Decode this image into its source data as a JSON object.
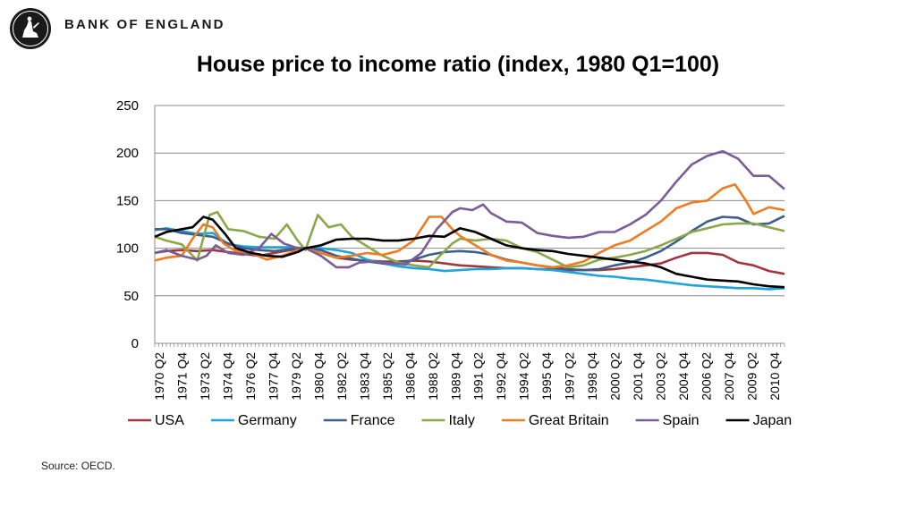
{
  "header": {
    "bank_name": "BANK OF ENGLAND"
  },
  "footer": {
    "source": "Source: OECD."
  },
  "chart_data": {
    "type": "line",
    "title": "House price to income ratio (index, 1980 Q1=100)",
    "xlabel": "",
    "ylabel": "",
    "ylim": [
      0,
      250
    ],
    "yticks": [
      0,
      50,
      100,
      150,
      200,
      250
    ],
    "xlim": [
      1970.25,
      2011.0
    ],
    "xtick_labels": [
      "1970 Q2",
      "1971 Q4",
      "1973 Q2",
      "1974 Q4",
      "1976 Q2",
      "1977 Q4",
      "1979 Q2",
      "1980 Q4",
      "1982 Q2",
      "1983 Q4",
      "1985 Q2",
      "1986 Q4",
      "1988 Q2",
      "1989 Q4",
      "1991 Q2",
      "1992 Q4",
      "1994 Q2",
      "1995 Q4",
      "1997 Q2",
      "1998 Q4",
      "2000 Q2",
      "2001 Q4",
      "2003 Q2",
      "2004 Q4",
      "2006 Q2",
      "2007 Q4",
      "2009 Q2",
      "2010 Q4"
    ],
    "grid": "horizontal",
    "legend_position": "bottom",
    "series": [
      {
        "name": "USA",
        "color": "#a0373c",
        "points": [
          [
            1970.25,
            95
          ],
          [
            1971,
            97
          ],
          [
            1972,
            98
          ],
          [
            1973,
            97
          ],
          [
            1974,
            98
          ],
          [
            1975,
            96
          ],
          [
            1976,
            94
          ],
          [
            1977,
            92
          ],
          [
            1978,
            95
          ],
          [
            1979,
            98
          ],
          [
            1980,
            100
          ],
          [
            1981,
            95
          ],
          [
            1982,
            90
          ],
          [
            1983,
            88
          ],
          [
            1984,
            87
          ],
          [
            1985,
            86
          ],
          [
            1986,
            86
          ],
          [
            1987,
            87
          ],
          [
            1988,
            86
          ],
          [
            1989,
            84
          ],
          [
            1990,
            82
          ],
          [
            1991,
            81
          ],
          [
            1992,
            80
          ],
          [
            1993,
            79
          ],
          [
            1994,
            79
          ],
          [
            1995,
            78
          ],
          [
            1996,
            78
          ],
          [
            1997,
            77
          ],
          [
            1998,
            77
          ],
          [
            1999,
            77
          ],
          [
            2000,
            78
          ],
          [
            2001,
            80
          ],
          [
            2002,
            82
          ],
          [
            2003,
            84
          ],
          [
            2004,
            90
          ],
          [
            2005,
            95
          ],
          [
            2006,
            95
          ],
          [
            2007,
            93
          ],
          [
            2008,
            85
          ],
          [
            2009,
            82
          ],
          [
            2010,
            76
          ],
          [
            2011,
            73
          ]
        ]
      },
      {
        "name": "Germany",
        "color": "#1ea3dc",
        "points": [
          [
            1970.25,
            119
          ],
          [
            1971,
            121
          ],
          [
            1972,
            118
          ],
          [
            1973,
            115
          ],
          [
            1974,
            116
          ],
          [
            1975,
            104
          ],
          [
            1976,
            102
          ],
          [
            1977,
            101
          ],
          [
            1978,
            101
          ],
          [
            1979,
            101
          ],
          [
            1980,
            100
          ],
          [
            1981,
            100
          ],
          [
            1982,
            98
          ],
          [
            1983,
            95
          ],
          [
            1984,
            88
          ],
          [
            1985,
            84
          ],
          [
            1986,
            81
          ],
          [
            1987,
            79
          ],
          [
            1988,
            78
          ],
          [
            1989,
            76
          ],
          [
            1990,
            77
          ],
          [
            1991,
            78
          ],
          [
            1992,
            78
          ],
          [
            1993,
            79
          ],
          [
            1994,
            79
          ],
          [
            1995,
            78
          ],
          [
            1996,
            77
          ],
          [
            1997,
            75
          ],
          [
            1998,
            73
          ],
          [
            1999,
            71
          ],
          [
            2000,
            70
          ],
          [
            2001,
            68
          ],
          [
            2002,
            67
          ],
          [
            2003,
            65
          ],
          [
            2004,
            63
          ],
          [
            2005,
            61
          ],
          [
            2006,
            60
          ],
          [
            2007,
            59
          ],
          [
            2008,
            58
          ],
          [
            2009,
            58
          ],
          [
            2010,
            57
          ],
          [
            2011,
            58
          ]
        ]
      },
      {
        "name": "France",
        "color": "#3d5f8e",
        "points": [
          [
            1970.25,
            120
          ],
          [
            1971,
            120
          ],
          [
            1972,
            116
          ],
          [
            1973,
            114
          ],
          [
            1974,
            112
          ],
          [
            1975,
            105
          ],
          [
            1976,
            100
          ],
          [
            1977,
            98
          ],
          [
            1978,
            97
          ],
          [
            1979,
            99
          ],
          [
            1980,
            100
          ],
          [
            1981,
            98
          ],
          [
            1982,
            92
          ],
          [
            1983,
            89
          ],
          [
            1984,
            86
          ],
          [
            1985,
            84
          ],
          [
            1986,
            84
          ],
          [
            1987,
            88
          ],
          [
            1988,
            93
          ],
          [
            1989,
            96
          ],
          [
            1990,
            97
          ],
          [
            1991,
            96
          ],
          [
            1992,
            93
          ],
          [
            1993,
            88
          ],
          [
            1994,
            85
          ],
          [
            1995,
            82
          ],
          [
            1996,
            80
          ],
          [
            1997,
            78
          ],
          [
            1998,
            77
          ],
          [
            1999,
            78
          ],
          [
            2000,
            82
          ],
          [
            2001,
            85
          ],
          [
            2002,
            90
          ],
          [
            2003,
            97
          ],
          [
            2004,
            107
          ],
          [
            2005,
            118
          ],
          [
            2006,
            128
          ],
          [
            2007,
            133
          ],
          [
            2008,
            132
          ],
          [
            2009,
            125
          ],
          [
            2010,
            126
          ],
          [
            2011,
            134
          ]
        ]
      },
      {
        "name": "Italy",
        "color": "#8aa84a",
        "points": [
          [
            1970.25,
            112
          ],
          [
            1971,
            108
          ],
          [
            1972,
            104
          ],
          [
            1973,
            87
          ],
          [
            1973.8,
            135
          ],
          [
            1974.3,
            138
          ],
          [
            1975,
            120
          ],
          [
            1976,
            118
          ],
          [
            1977,
            112
          ],
          [
            1978,
            110
          ],
          [
            1978.8,
            125
          ],
          [
            1979.5,
            108
          ],
          [
            1980,
            98
          ],
          [
            1980.8,
            135
          ],
          [
            1981.5,
            122
          ],
          [
            1982.3,
            125
          ],
          [
            1983,
            112
          ],
          [
            1984,
            102
          ],
          [
            1985,
            92
          ],
          [
            1986,
            85
          ],
          [
            1987,
            82
          ],
          [
            1988,
            80
          ],
          [
            1988.7,
            92
          ],
          [
            1989.5,
            105
          ],
          [
            1990,
            110
          ],
          [
            1991,
            108
          ],
          [
            1992,
            110
          ],
          [
            1993,
            108
          ],
          [
            1994,
            100
          ],
          [
            1995,
            96
          ],
          [
            1996,
            88
          ],
          [
            1997,
            80
          ],
          [
            1998,
            82
          ],
          [
            1999,
            88
          ],
          [
            2000,
            90
          ],
          [
            2001,
            93
          ],
          [
            2002,
            97
          ],
          [
            2003,
            103
          ],
          [
            2004,
            110
          ],
          [
            2005,
            117
          ],
          [
            2006,
            121
          ],
          [
            2007,
            125
          ],
          [
            2008,
            126
          ],
          [
            2009,
            126
          ],
          [
            2010,
            122
          ],
          [
            2011,
            118
          ]
        ]
      },
      {
        "name": "Great Britain",
        "color": "#f07b20",
        "points": [
          [
            1970.25,
            87
          ],
          [
            1971,
            90
          ],
          [
            1972,
            92
          ],
          [
            1972.7,
            110
          ],
          [
            1973.4,
            125
          ],
          [
            1974,
            122
          ],
          [
            1974.7,
            105
          ],
          [
            1975.5,
            97
          ],
          [
            1976.5,
            95
          ],
          [
            1977.5,
            88
          ],
          [
            1978.5,
            92
          ],
          [
            1979.5,
            98
          ],
          [
            1980,
            100
          ],
          [
            1981,
            95
          ],
          [
            1982,
            90
          ],
          [
            1983,
            92
          ],
          [
            1984,
            95
          ],
          [
            1985,
            93
          ],
          [
            1986,
            97
          ],
          [
            1987,
            108
          ],
          [
            1988,
            133
          ],
          [
            1988.8,
            133
          ],
          [
            1989.5,
            120
          ],
          [
            1990,
            113
          ],
          [
            1991,
            103
          ],
          [
            1992,
            93
          ],
          [
            1993,
            87
          ],
          [
            1994,
            85
          ],
          [
            1995,
            82
          ],
          [
            1996,
            80
          ],
          [
            1997,
            82
          ],
          [
            1998,
            86
          ],
          [
            1999,
            95
          ],
          [
            2000,
            103
          ],
          [
            2001,
            108
          ],
          [
            2002,
            118
          ],
          [
            2003,
            128
          ],
          [
            2004,
            142
          ],
          [
            2005,
            148
          ],
          [
            2006,
            150
          ],
          [
            2007,
            163
          ],
          [
            2007.8,
            167
          ],
          [
            2008.5,
            150
          ],
          [
            2009,
            136
          ],
          [
            2010,
            143
          ],
          [
            2011,
            140
          ]
        ]
      },
      {
        "name": "Spain",
        "color": "#7a5c96",
        "points": [
          [
            1970.25,
            95
          ],
          [
            1971,
            98
          ],
          [
            1972,
            92
          ],
          [
            1973,
            88
          ],
          [
            1973.6,
            92
          ],
          [
            1974.2,
            103
          ],
          [
            1975,
            95
          ],
          [
            1976,
            93
          ],
          [
            1977,
            100
          ],
          [
            1977.8,
            115
          ],
          [
            1978.6,
            105
          ],
          [
            1979.5,
            100
          ],
          [
            1980,
            100
          ],
          [
            1981,
            92
          ],
          [
            1982,
            80
          ],
          [
            1982.8,
            80
          ],
          [
            1983.5,
            85
          ],
          [
            1984.5,
            86
          ],
          [
            1985.5,
            84
          ],
          [
            1986.5,
            83
          ],
          [
            1987.5,
            95
          ],
          [
            1988.5,
            120
          ],
          [
            1989.5,
            138
          ],
          [
            1990,
            142
          ],
          [
            1990.8,
            140
          ],
          [
            1991.5,
            146
          ],
          [
            1992,
            137
          ],
          [
            1993,
            128
          ],
          [
            1994,
            127
          ],
          [
            1995,
            116
          ],
          [
            1996,
            113
          ],
          [
            1997,
            111
          ],
          [
            1998,
            112
          ],
          [
            1999,
            117
          ],
          [
            2000,
            117
          ],
          [
            2001,
            125
          ],
          [
            2002,
            135
          ],
          [
            2003,
            150
          ],
          [
            2004,
            170
          ],
          [
            2005,
            188
          ],
          [
            2006,
            197
          ],
          [
            2007,
            202
          ],
          [
            2008,
            194
          ],
          [
            2009,
            176
          ],
          [
            2010,
            176
          ],
          [
            2011,
            162
          ]
        ]
      },
      {
        "name": "Japan",
        "color": "#000000",
        "points": [
          [
            1970.25,
            112
          ],
          [
            1971,
            117
          ],
          [
            1972,
            120
          ],
          [
            1972.7,
            122
          ],
          [
            1973.4,
            133
          ],
          [
            1974,
            130
          ],
          [
            1974.8,
            115
          ],
          [
            1975.5,
            100
          ],
          [
            1976.5,
            95
          ],
          [
            1977.5,
            92
          ],
          [
            1978.5,
            91
          ],
          [
            1979.5,
            96
          ],
          [
            1980,
            100
          ],
          [
            1981,
            103
          ],
          [
            1982,
            109
          ],
          [
            1983,
            110
          ],
          [
            1984,
            110
          ],
          [
            1985,
            108
          ],
          [
            1986,
            108
          ],
          [
            1987,
            110
          ],
          [
            1988,
            113
          ],
          [
            1989,
            112
          ],
          [
            1990,
            121
          ],
          [
            1991,
            117
          ],
          [
            1992,
            110
          ],
          [
            1993,
            103
          ],
          [
            1994,
            100
          ],
          [
            1995,
            98
          ],
          [
            1996,
            97
          ],
          [
            1997,
            94
          ],
          [
            1998,
            92
          ],
          [
            1999,
            90
          ],
          [
            2000,
            88
          ],
          [
            2001,
            86
          ],
          [
            2002,
            84
          ],
          [
            2003,
            80
          ],
          [
            2004,
            73
          ],
          [
            2005,
            70
          ],
          [
            2006,
            67
          ],
          [
            2007,
            66
          ],
          [
            2008,
            65
          ],
          [
            2009,
            62
          ],
          [
            2010,
            60
          ],
          [
            2011,
            59
          ]
        ]
      }
    ]
  }
}
